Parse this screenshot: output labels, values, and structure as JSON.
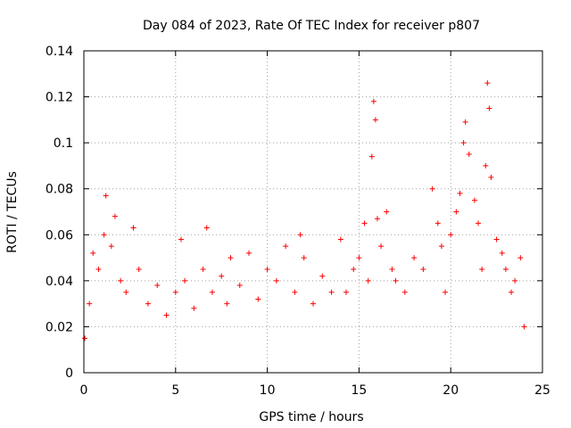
{
  "chart_data": {
    "type": "scatter",
    "title": "Day 084 of 2023, Rate Of TEC Index for receiver p807",
    "xlabel": "GPS time / hours",
    "ylabel": "ROTI / TECUs",
    "xlim": [
      0,
      25
    ],
    "ylim": [
      0,
      0.14
    ],
    "x_ticks": [
      0,
      5,
      10,
      15,
      20,
      25
    ],
    "x_tick_labels": [
      "0",
      "5",
      "10",
      "15",
      "20",
      "25"
    ],
    "y_ticks": [
      0,
      0.02,
      0.04,
      0.06,
      0.08,
      0.1,
      0.12,
      0.14
    ],
    "y_tick_labels": [
      "0",
      "0.02",
      "0.04",
      "0.06",
      "0.08",
      "0.1",
      "0.12",
      "0.14"
    ],
    "grid": true,
    "marker": "plus",
    "color": "#ff0000",
    "series": [
      {
        "x": [
          0.05,
          0.3,
          0.5,
          0.8,
          1.1,
          1.2,
          1.5,
          1.7,
          2.0,
          2.3,
          2.7,
          3.0,
          3.5,
          4.0,
          4.5,
          5.0,
          5.3,
          5.5,
          6.0,
          6.5,
          6.7,
          7.0,
          7.5,
          7.8,
          8.0,
          8.5,
          9.0,
          9.5,
          10.0,
          10.5,
          11.0,
          11.5,
          11.8,
          12.0,
          12.5,
          13.0,
          13.5,
          14.0,
          14.3,
          14.7,
          15.0,
          15.3,
          15.5,
          15.7,
          15.8,
          15.9,
          16.0,
          16.2,
          16.5,
          16.8,
          17.0,
          17.5,
          18.0,
          18.5,
          19.0,
          19.3,
          19.5,
          19.7,
          20.0,
          20.3,
          20.5,
          20.7,
          20.8,
          21.0,
          21.3,
          21.5,
          21.7,
          21.9,
          22.0,
          22.1,
          22.2,
          22.5,
          22.8,
          23.0,
          23.3,
          23.5,
          23.8,
          24.0
        ],
        "y": [
          0.015,
          0.03,
          0.052,
          0.045,
          0.06,
          0.077,
          0.055,
          0.068,
          0.04,
          0.035,
          0.063,
          0.045,
          0.03,
          0.038,
          0.025,
          0.035,
          0.058,
          0.04,
          0.028,
          0.045,
          0.063,
          0.035,
          0.042,
          0.03,
          0.05,
          0.038,
          0.052,
          0.032,
          0.045,
          0.04,
          0.055,
          0.035,
          0.06,
          0.05,
          0.03,
          0.042,
          0.035,
          0.058,
          0.035,
          0.045,
          0.05,
          0.065,
          0.04,
          0.094,
          0.118,
          0.11,
          0.067,
          0.055,
          0.07,
          0.045,
          0.04,
          0.035,
          0.05,
          0.045,
          0.08,
          0.065,
          0.055,
          0.035,
          0.06,
          0.07,
          0.078,
          0.1,
          0.109,
          0.095,
          0.075,
          0.065,
          0.045,
          0.09,
          0.126,
          0.115,
          0.085,
          0.058,
          0.052,
          0.045,
          0.035,
          0.04,
          0.05,
          0.02
        ]
      }
    ]
  }
}
